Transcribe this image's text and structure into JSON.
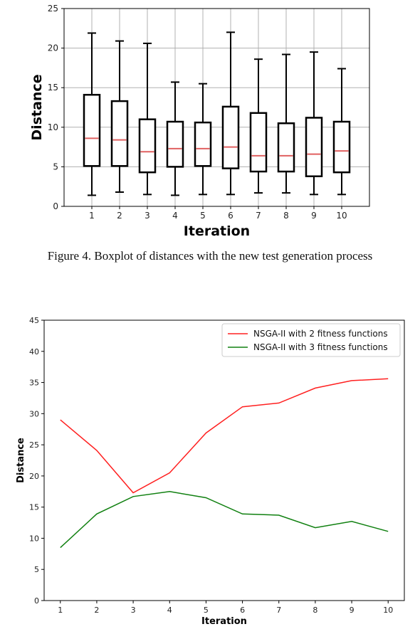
{
  "caption": "Figure 4. Boxplot of distances with the new test generation process",
  "chart_data": [
    {
      "type": "boxplot",
      "title": "",
      "xlabel": "Iteration",
      "ylabel": "Distance",
      "ylim": [
        0,
        25
      ],
      "yticks": [
        0,
        5,
        10,
        15,
        20,
        25
      ],
      "grid": true,
      "categories": [
        "1",
        "2",
        "3",
        "4",
        "5",
        "6",
        "7",
        "8",
        "9",
        "10"
      ],
      "boxes": [
        {
          "min": 1.4,
          "q1": 5.1,
          "median": 8.6,
          "q3": 14.1,
          "max": 21.9
        },
        {
          "min": 1.8,
          "q1": 5.1,
          "median": 8.4,
          "q3": 13.3,
          "max": 20.9
        },
        {
          "min": 1.5,
          "q1": 4.3,
          "median": 6.9,
          "q3": 11.0,
          "max": 20.6
        },
        {
          "min": 1.4,
          "q1": 5.0,
          "median": 7.3,
          "q3": 10.7,
          "max": 15.7
        },
        {
          "min": 1.5,
          "q1": 5.1,
          "median": 7.3,
          "q3": 10.6,
          "max": 15.5
        },
        {
          "min": 1.5,
          "q1": 4.8,
          "median": 7.5,
          "q3": 12.6,
          "max": 22.0
        },
        {
          "min": 1.7,
          "q1": 4.4,
          "median": 6.4,
          "q3": 11.8,
          "max": 18.6
        },
        {
          "min": 1.7,
          "q1": 4.4,
          "median": 6.4,
          "q3": 10.5,
          "max": 19.2
        },
        {
          "min": 1.5,
          "q1": 3.8,
          "median": 6.6,
          "q3": 11.2,
          "max": 19.5
        },
        {
          "min": 1.5,
          "q1": 4.3,
          "median": 7.0,
          "q3": 10.7,
          "max": 17.4
        }
      ],
      "colors": {
        "box": "#000000",
        "median": "#e06060",
        "grid": "#b0b0b0"
      }
    },
    {
      "type": "line",
      "title": "",
      "xlabel": "Iteration",
      "ylabel": "Distance",
      "ylim": [
        0,
        45
      ],
      "yticks": [
        0,
        5,
        10,
        15,
        20,
        25,
        30,
        35,
        40,
        45
      ],
      "grid": false,
      "legend": "top-right",
      "x": [
        1,
        2,
        3,
        4,
        5,
        6,
        7,
        8,
        9,
        10
      ],
      "series": [
        {
          "name": "NSGA-II with 2 fitness functions",
          "color": "#ff2020",
          "values": [
            29.0,
            24.1,
            17.3,
            20.5,
            26.9,
            31.1,
            31.7,
            34.1,
            35.3,
            35.6
          ]
        },
        {
          "name": "NSGA-II with 3 fitness functions",
          "color": "#108010",
          "values": [
            8.5,
            13.9,
            16.7,
            17.5,
            16.5,
            13.9,
            13.7,
            11.7,
            12.7,
            11.1
          ]
        }
      ]
    }
  ]
}
